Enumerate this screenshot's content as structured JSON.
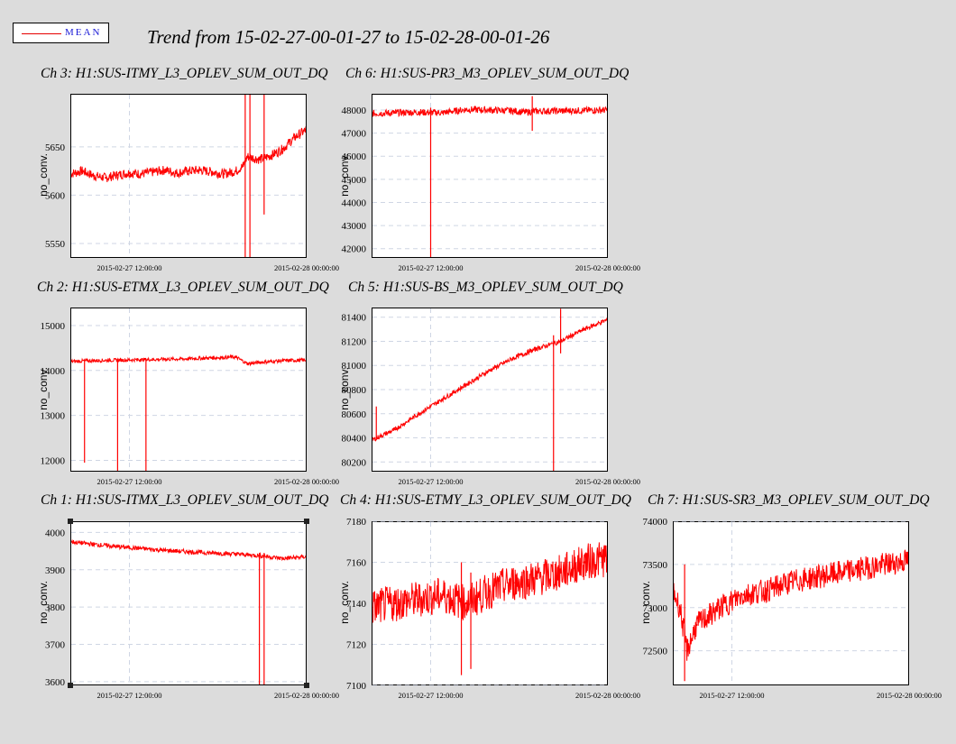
{
  "legend": {
    "label": "MEAN",
    "line_color": "#e60000",
    "text_color": "#1b1bd6"
  },
  "page_title": "Trend from 15-02-27-00-01-27 to 15-02-28-00-01-26",
  "colors": {
    "background": "#dcdcdc",
    "plot_bg": "#ffffff",
    "series": "#ff0000",
    "grid": "#cfd6e4"
  },
  "chart_data": [
    {
      "type": "line",
      "title": "Ch 3: H1:SUS-ITMY_L3_OPLEV_SUM_OUT_DQ",
      "ylabel": "no_conv.",
      "ylim": [
        5535,
        5705
      ],
      "yticks": [
        5550,
        5600,
        5650
      ],
      "xticks": [
        "2015-02-27 12:00:00",
        "2015-02-28 00:00:00"
      ],
      "x": [
        0,
        0.05,
        0.1,
        0.15,
        0.2,
        0.25,
        0.3,
        0.35,
        0.4,
        0.45,
        0.5,
        0.55,
        0.6,
        0.65,
        0.7,
        0.73,
        0.75,
        0.8,
        0.85,
        0.9,
        0.95,
        1.0
      ],
      "values": [
        5622,
        5625,
        5620,
        5618,
        5621,
        5623,
        5622,
        5624,
        5626,
        5623,
        5625,
        5626,
        5624,
        5622,
        5625,
        5630,
        5640,
        5637,
        5641,
        5648,
        5660,
        5668
      ],
      "spikes": [
        {
          "x": 0.74,
          "low": 5535,
          "high": 5705
        },
        {
          "x": 0.76,
          "low": 5535,
          "high": 5705
        },
        {
          "x": 0.82,
          "low": 5580,
          "high": 5705
        }
      ],
      "noise": 5
    },
    {
      "type": "line",
      "title": "Ch 6: H1:SUS-PR3_M3_OPLEV_SUM_OUT_DQ",
      "ylabel": "no_conv.",
      "ylim": [
        41600,
        48700
      ],
      "yticks": [
        42000,
        43000,
        44000,
        45000,
        46000,
        47000,
        48000
      ],
      "xticks": [
        "2015-02-27 12:00:00",
        "2015-02-28 00:00:00"
      ],
      "x": [
        0,
        0.1,
        0.2,
        0.3,
        0.4,
        0.5,
        0.6,
        0.65,
        0.7,
        0.8,
        0.9,
        1.0
      ],
      "values": [
        47850,
        47880,
        47900,
        47880,
        48020,
        48000,
        47960,
        47900,
        47950,
        47960,
        47980,
        48000
      ],
      "spikes": [
        {
          "x": 0.25,
          "low": 41600,
          "high": 48100
        },
        {
          "x": 0.68,
          "low": 47100,
          "high": 48600
        }
      ],
      "noise": 150
    },
    {
      "type": "line",
      "title": "Ch 2: H1:SUS-ETMX_L3_OPLEV_SUM_OUT_DQ",
      "ylabel": "no_conv.",
      "ylim": [
        11750,
        15400
      ],
      "yticks": [
        12000,
        13000,
        14000,
        15000
      ],
      "xticks": [
        "2015-02-27 12:00:00",
        "2015-02-28 00:00:00"
      ],
      "x": [
        0,
        0.1,
        0.2,
        0.3,
        0.4,
        0.5,
        0.6,
        0.7,
        0.75,
        0.8,
        0.9,
        1.0
      ],
      "values": [
        14200,
        14220,
        14230,
        14240,
        14250,
        14260,
        14280,
        14300,
        14150,
        14180,
        14220,
        14230
      ],
      "spikes": [
        {
          "x": 0.06,
          "low": 11950,
          "high": 14250
        },
        {
          "x": 0.2,
          "low": 11750,
          "high": 14250
        },
        {
          "x": 0.32,
          "low": 11750,
          "high": 14250
        }
      ],
      "noise": 40
    },
    {
      "type": "line",
      "title": "Ch 5: H1:SUS-BS_M3_OPLEV_SUM_OUT_DQ",
      "ylabel": "no_conv.",
      "ylim": [
        80120,
        81480
      ],
      "yticks": [
        80200,
        80400,
        80600,
        80800,
        81000,
        81200,
        81400
      ],
      "xticks": [
        "2015-02-27 12:00:00",
        "2015-02-28 00:00:00"
      ],
      "x": [
        0,
        0.1,
        0.2,
        0.3,
        0.4,
        0.5,
        0.6,
        0.7,
        0.8,
        0.9,
        1.0
      ],
      "values": [
        80380,
        80470,
        80600,
        80720,
        80840,
        80960,
        81060,
        81140,
        81200,
        81300,
        81380
      ],
      "spikes": [
        {
          "x": 0.77,
          "low": 80120,
          "high": 81250
        },
        {
          "x": 0.8,
          "low": 81100,
          "high": 81470
        },
        {
          "x": 0.02,
          "low": 80380,
          "high": 80660
        }
      ],
      "noise": 20
    },
    {
      "type": "line",
      "title": "Ch 1: H1:SUS-ITMX_L3_OPLEV_SUM_OUT_DQ",
      "ylabel": "no_conv.",
      "ylim": [
        3590,
        4030
      ],
      "yticks": [
        3600,
        3700,
        3800,
        3900,
        4000
      ],
      "xticks": [
        "2015-02-27 12:00:00",
        "2015-02-28 00:00:00"
      ],
      "x": [
        0,
        0.1,
        0.2,
        0.3,
        0.4,
        0.5,
        0.6,
        0.7,
        0.8,
        0.9,
        1.0
      ],
      "values": [
        3975,
        3968,
        3962,
        3957,
        3952,
        3948,
        3945,
        3942,
        3938,
        3930,
        3935
      ],
      "spikes": [
        {
          "x": 0.8,
          "low": 3590,
          "high": 3945
        },
        {
          "x": 0.82,
          "low": 3590,
          "high": 3945
        }
      ],
      "noise": 6
    },
    {
      "type": "line",
      "title": "Ch 4: H1:SUS-ETMY_L3_OPLEV_SUM_OUT_DQ",
      "ylabel": "no_conv.",
      "ylim": [
        7100,
        7180
      ],
      "yticks": [
        7100,
        7120,
        7140,
        7160,
        7180
      ],
      "xticks": [
        "2015-02-27 12:00:00",
        "2015-02-28 00:00:00"
      ],
      "x": [
        0,
        0.1,
        0.2,
        0.3,
        0.4,
        0.5,
        0.6,
        0.7,
        0.8,
        0.9,
        1.0
      ],
      "values": [
        7138,
        7140,
        7142,
        7144,
        7140,
        7146,
        7150,
        7152,
        7155,
        7160,
        7162
      ],
      "spikes": [
        {
          "x": 0.38,
          "low": 7105,
          "high": 7160
        },
        {
          "x": 0.42,
          "low": 7108,
          "high": 7155
        }
      ],
      "noise": 9
    },
    {
      "type": "line",
      "title": "Ch 7: H1:SUS-SR3_M3_OPLEV_SUM_OUT_DQ",
      "ylabel": "no_conv.",
      "ylim": [
        72100,
        74000
      ],
      "yticks": [
        72500,
        73000,
        73500,
        74000
      ],
      "xticks": [
        "2015-02-27 12:00:00",
        "2015-02-28 00:00:00"
      ],
      "x": [
        0,
        0.03,
        0.06,
        0.1,
        0.15,
        0.2,
        0.3,
        0.4,
        0.5,
        0.6,
        0.7,
        0.8,
        0.9,
        1.0
      ],
      "values": [
        73200,
        73000,
        72500,
        72800,
        72900,
        73000,
        73150,
        73200,
        73300,
        73350,
        73400,
        73450,
        73500,
        73550
      ],
      "spikes": [
        {
          "x": 0.05,
          "low": 72150,
          "high": 73500
        }
      ],
      "noise": 140
    }
  ]
}
